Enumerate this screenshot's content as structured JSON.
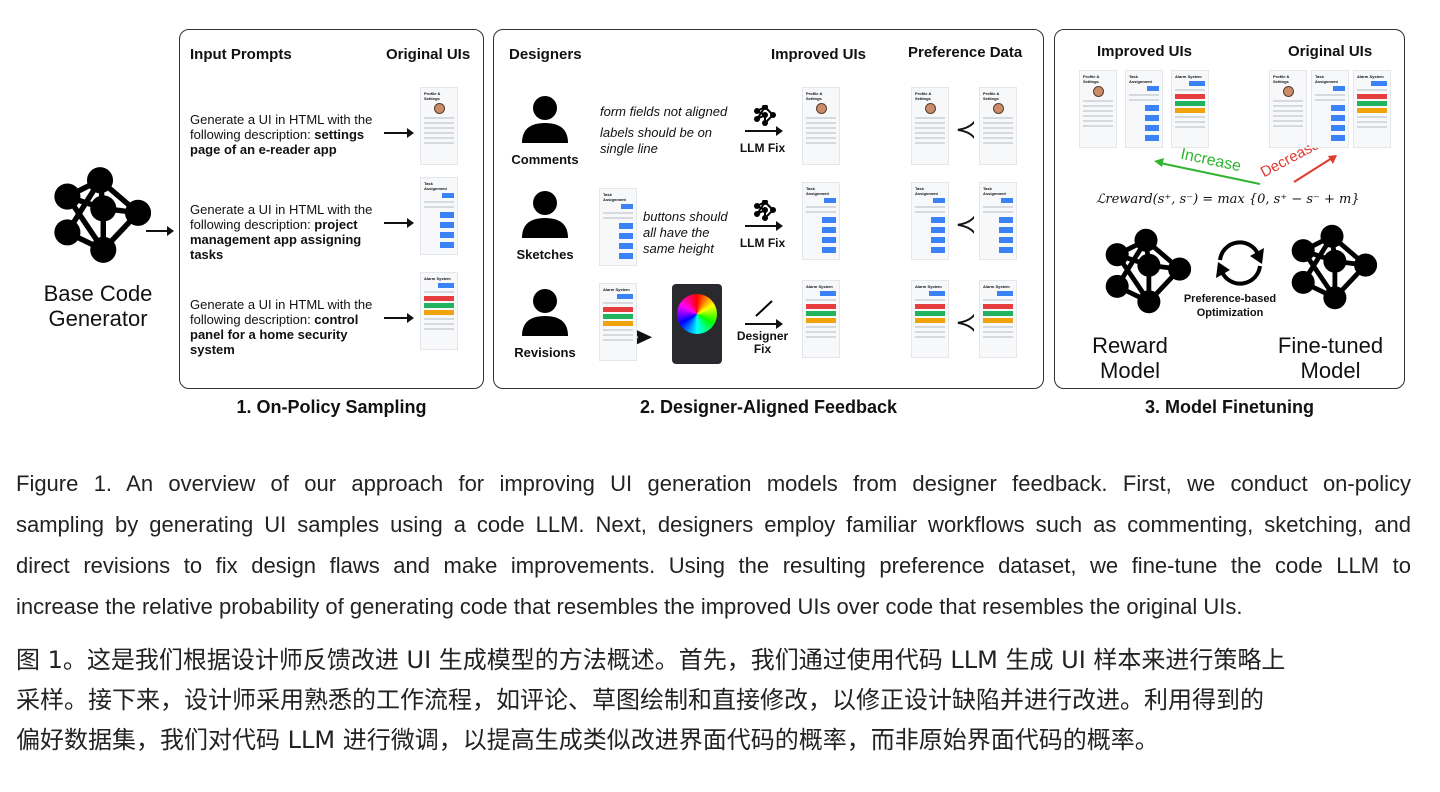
{
  "figure": {
    "base_generator_label": "Base Code Generator",
    "panel1": {
      "header_left": "Input Prompts",
      "header_right": "Original UIs",
      "prompts": [
        {
          "prefix": "Generate a UI in HTML with the following description: ",
          "bold": "settings page of an e-reader app",
          "thumb_title": "Profile & Settings"
        },
        {
          "prefix": "Generate a UI in HTML with the following description: ",
          "bold": "project management app assigning tasks",
          "thumb_title": "Task Assignment"
        },
        {
          "prefix": "Generate a UI in HTML with the following description: ",
          "bold": "control panel for a home security system",
          "thumb_title": "Alarm System"
        }
      ],
      "caption": "1. On-Policy Sampling"
    },
    "panel2": {
      "header_designers": "Designers",
      "header_improved": "Improved UIs",
      "header_pref": "Preference Data",
      "rows": [
        {
          "label": "Comments",
          "notes": [
            "form fields not aligned",
            "labels should be on single line"
          ],
          "fix": "LLM Fix"
        },
        {
          "label": "Sketches",
          "notes": [
            "buttons should all have the same height"
          ],
          "fix": "LLM Fix"
        },
        {
          "label": "Revisions",
          "notes": [],
          "fix": "Designer Fix"
        }
      ],
      "prec_symbol": "≺",
      "caption": "2. Designer-Aligned Feedback"
    },
    "panel3": {
      "header_improved": "Improved UIs",
      "header_original": "Original UIs",
      "increase": "Increase",
      "decrease": "Decrease",
      "formula": "ℒreward(s⁺, s⁻) = max {0, s⁺ − s⁻ + m}",
      "cycle_label": "Preference-based Optimization",
      "reward_model": "Reward Model",
      "finetuned_model": "Fine-tuned Model",
      "caption": "3. Model Finetuning"
    },
    "colors": {
      "increase": "#2fb52f",
      "decrease": "#e03a2f",
      "blue": "#3b82f6",
      "red": "#e53e3e",
      "green": "#22b35e",
      "yellow": "#f0a30a"
    }
  },
  "caption_en": [
    "Figure 1. An overview of our approach for improving UI generation models from designer feedback. First, we conduct on-policy",
    "sampling by generating UI samples using a code LLM. Next, designers employ familiar workflows such as commenting, sketching, and",
    "direct revisions to fix design flaws and make improvements. Using the resulting preference dataset, we fine-tune the code LLM to",
    "increase the relative probability of generating code that resembles the improved UIs over code that resembles the original UIs."
  ],
  "caption_zh": [
    "图 1。这是我们根据设计师反馈改进 UI 生成模型的方法概述。首先，我们通过使用代码 LLM 生成 UI 样本来进行策略上",
    "采样。接下来，设计师采用熟悉的工作流程，如评论、草图绘制和直接修改，以修正设计缺陷并进行改进。利用得到的",
    "偏好数据集，我们对代码 LLM 进行微调，以提高生成类似改进界面代码的概率，而非原始界面代码的概率。"
  ]
}
